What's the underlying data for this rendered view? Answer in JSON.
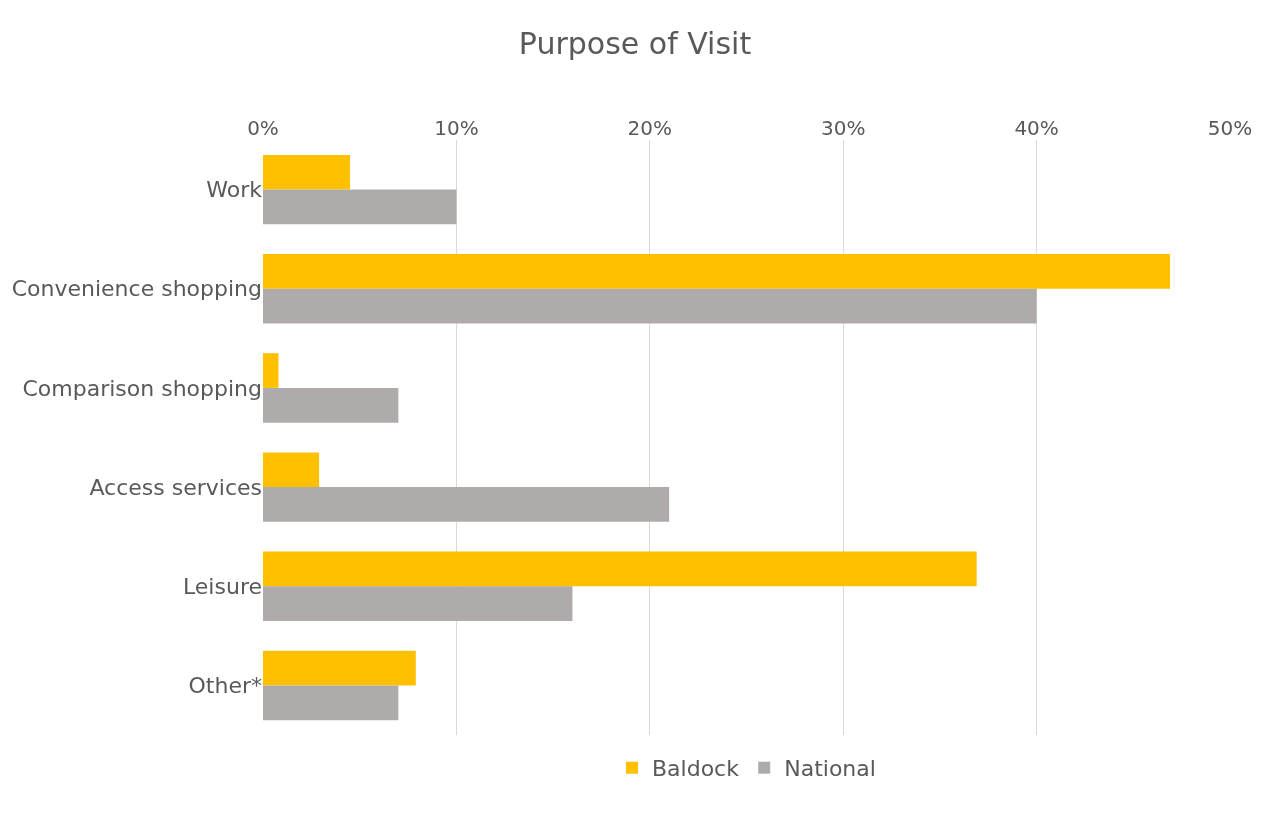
{
  "chart_data": {
    "type": "bar",
    "orientation": "horizontal",
    "title": "Purpose of Visit",
    "categories": [
      "Work",
      "Convenience shopping",
      "Comparison shopping",
      "Access services",
      "Leisure",
      "Other*"
    ],
    "series": [
      {
        "name": "Baldock",
        "color": "#ffc000",
        "values": [
          4.5,
          46.9,
          0.8,
          2.9,
          36.9,
          7.9
        ]
      },
      {
        "name": "National",
        "color": "#afabab",
        "values": [
          10,
          40,
          7,
          21,
          16,
          7
        ]
      }
    ],
    "xlim": [
      0,
      50
    ],
    "xticks": [
      {
        "value": 0,
        "label": "0%"
      },
      {
        "value": 10,
        "label": "10%"
      },
      {
        "value": 20,
        "label": "20%"
      },
      {
        "value": 30,
        "label": "30%"
      },
      {
        "value": 40,
        "label": "40%"
      },
      {
        "value": 50,
        "label": "50%"
      }
    ],
    "grid": "x",
    "legend": "bottom"
  }
}
